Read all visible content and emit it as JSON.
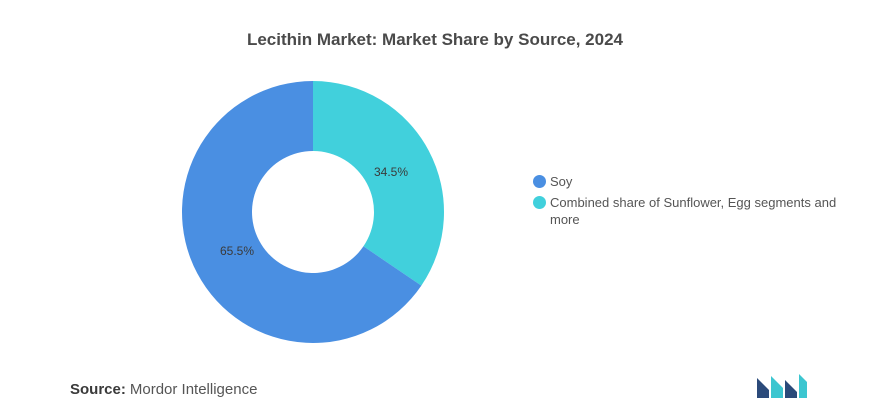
{
  "colors": {
    "soy": "#4a8fe2",
    "combined": "#41d0dc",
    "logo_dark": "#2b4a7a",
    "logo_teal": "#3cc6d0"
  },
  "chart_data": {
    "type": "pie",
    "title": "Lecithin Market: Market Share by Source, 2024",
    "donut": true,
    "legend_position": "right",
    "slices": [
      {
        "name": "Soy",
        "value": 65.5,
        "label": "65.5%",
        "color": "#4a8fe2"
      },
      {
        "name": "Combined share of Sunflower, Egg segments and more",
        "value": 34.5,
        "label": "34.5%",
        "color": "#41d0dc"
      }
    ]
  },
  "source": {
    "key": "Source:",
    "value": "Mordor Intelligence"
  },
  "logo": {
    "icon": "mordor-intelligence-logo-icon"
  }
}
